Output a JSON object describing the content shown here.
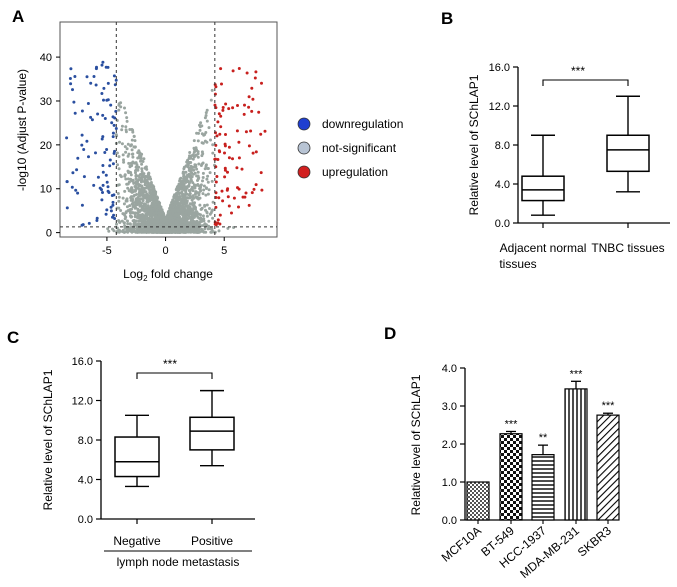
{
  "panels": {
    "A": "A",
    "B": "B",
    "C": "C",
    "D": "D"
  },
  "colors": {
    "down": "#2a4fa0",
    "ns": "#9aa5a0",
    "up": "#c8201e",
    "legend_down": "#1f3fd1",
    "legend_ns": "#b8c4d4",
    "legend_up": "#d11f1f"
  },
  "chart_data": [
    {
      "panel": "A",
      "type": "scatter",
      "title": "",
      "xlabel_main": "Log",
      "xlabel_sub": "2",
      "xlabel_rest": " fold change",
      "ylabel": "-log10 (Adjust P-value)",
      "xlim": [
        -9,
        9.5
      ],
      "ylim": [
        -1,
        48
      ],
      "xticks": [
        -5,
        0,
        5
      ],
      "yticks": [
        0,
        10,
        20,
        30,
        40
      ],
      "fc_thresholds": [
        -4.2,
        4.2
      ],
      "p_threshold": 1.3,
      "legend": [
        "downregulation",
        "not-significant",
        "upregulation"
      ]
    },
    {
      "panel": "B",
      "type": "boxplot",
      "title": "",
      "ylabel": "Relative level of SChLAP1",
      "ylim": [
        0,
        16
      ],
      "yticks": [
        "0.0",
        "4.0",
        "8.0",
        "12.0",
        "16.0"
      ],
      "categories": [
        "Adjacent normal tissues",
        "TNBC tissues"
      ],
      "category_lines": [
        [
          "Adjacent normal",
          "tissues"
        ],
        [
          "TNBC tissues"
        ]
      ],
      "boxes": [
        {
          "min": 0.8,
          "q1": 2.3,
          "median": 3.4,
          "q3": 4.8,
          "max": 9.0
        },
        {
          "min": 3.2,
          "q1": 5.3,
          "median": 7.5,
          "q3": 9.0,
          "max": 13.0
        }
      ],
      "significance": "***"
    },
    {
      "panel": "C",
      "type": "boxplot",
      "title": "",
      "ylabel": "Relative level of SChLAP1",
      "ylim": [
        0,
        16
      ],
      "yticks": [
        "0.0",
        "4.0",
        "8.0",
        "12.0",
        "16.0"
      ],
      "categories": [
        "Negative",
        "Positive"
      ],
      "xlabel": "lymph node metastasis",
      "boxes": [
        {
          "min": 3.3,
          "q1": 4.3,
          "median": 5.8,
          "q3": 8.3,
          "max": 10.5
        },
        {
          "min": 5.4,
          "q1": 7.0,
          "median": 8.9,
          "q3": 10.3,
          "max": 13.0
        }
      ],
      "significance": "***"
    },
    {
      "panel": "D",
      "type": "bar",
      "title": "",
      "ylabel": "Relative level of SChLAP1",
      "ylim": [
        0,
        4
      ],
      "yticks": [
        "0.0",
        "1.0",
        "2.0",
        "3.0",
        "4.0"
      ],
      "categories": [
        "MCF10A",
        "BT-549",
        "HCC-1937",
        "MDA-MB-231",
        "SKBR3"
      ],
      "values": [
        1.0,
        2.27,
        1.72,
        3.45,
        2.76
      ],
      "errors": [
        0,
        0.06,
        0.25,
        0.2,
        0.05
      ],
      "significance": [
        "",
        "***",
        "**",
        "***",
        "***"
      ]
    }
  ]
}
